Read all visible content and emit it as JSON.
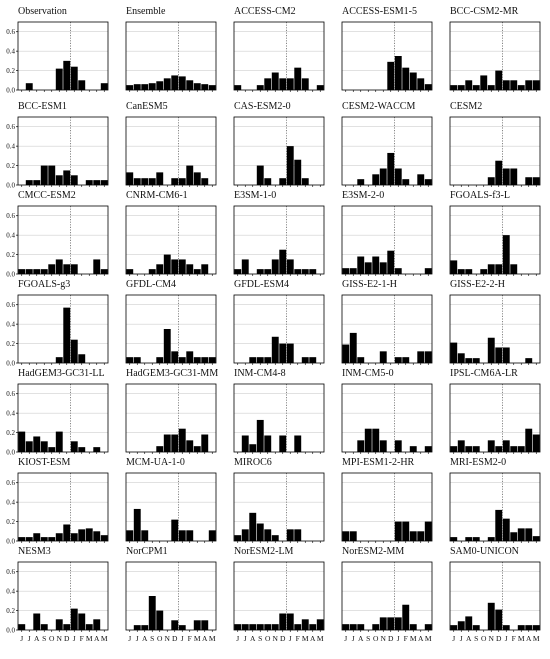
{
  "chart_data": {
    "type": "bar",
    "layout": "small-multiples",
    "grid": true,
    "months": [
      "J",
      "J",
      "A",
      "S",
      "O",
      "N",
      "D",
      "J",
      "F",
      "M",
      "A",
      "M"
    ],
    "ylim": [
      0,
      0.7
    ],
    "yticks": [
      0.0,
      0.2,
      0.4,
      0.6
    ],
    "ytick_labels": [
      "0.0",
      "0.2",
      "0.4",
      "0.6"
    ],
    "divider_after_month_index": 6,
    "panels": [
      {
        "name": "Observation",
        "values": [
          0,
          0.07,
          0,
          0,
          0,
          0.22,
          0.3,
          0.24,
          0.1,
          0,
          0,
          0.07
        ]
      },
      {
        "name": "Ensemble",
        "values": [
          0.05,
          0.06,
          0.06,
          0.07,
          0.09,
          0.12,
          0.15,
          0.14,
          0.1,
          0.07,
          0.06,
          0.05
        ]
      },
      {
        "name": "ACCESS-CM2",
        "values": [
          0.05,
          0,
          0,
          0.05,
          0.12,
          0.18,
          0.12,
          0.12,
          0.23,
          0.12,
          0,
          0.05
        ]
      },
      {
        "name": "ACCESS-ESM1-5",
        "values": [
          0,
          0,
          0,
          0,
          0,
          0,
          0.29,
          0.35,
          0.23,
          0.18,
          0.12,
          0.06
        ]
      },
      {
        "name": "BCC-CSM2-MR",
        "values": [
          0.05,
          0.05,
          0.1,
          0.05,
          0.15,
          0.05,
          0.2,
          0.1,
          0.1,
          0.05,
          0.1,
          0.1
        ]
      },
      {
        "name": "BCC-ESM1",
        "values": [
          0,
          0.05,
          0.05,
          0.2,
          0.2,
          0.1,
          0.15,
          0.1,
          0,
          0.05,
          0.05,
          0.05
        ]
      },
      {
        "name": "CanESM5",
        "values": [
          0.13,
          0.07,
          0.07,
          0.07,
          0.13,
          0,
          0.07,
          0.07,
          0.2,
          0.13,
          0.07,
          0
        ]
      },
      {
        "name": "CAS-ESM2-0",
        "values": [
          0,
          0,
          0,
          0.2,
          0.07,
          0,
          0.07,
          0.4,
          0.26,
          0.07,
          0,
          0
        ]
      },
      {
        "name": "CESM2-WACCM",
        "values": [
          0,
          0,
          0.06,
          0,
          0.11,
          0.17,
          0.33,
          0.17,
          0.06,
          0,
          0.11,
          0.06
        ]
      },
      {
        "name": "CESM2",
        "values": [
          0,
          0,
          0,
          0,
          0,
          0.08,
          0.25,
          0.17,
          0.17,
          0,
          0.08,
          0.08
        ]
      },
      {
        "name": "CMCC-ESM2",
        "values": [
          0.05,
          0.05,
          0.05,
          0.05,
          0.1,
          0.15,
          0.1,
          0.1,
          0,
          0,
          0.15,
          0.05
        ]
      },
      {
        "name": "CNRM-CM6-1",
        "values": [
          0.05,
          0,
          0,
          0.05,
          0.1,
          0.2,
          0.15,
          0.15,
          0.1,
          0.05,
          0.1,
          0
        ]
      },
      {
        "name": "E3SM-1-0",
        "values": [
          0.05,
          0.15,
          0,
          0.05,
          0.05,
          0.15,
          0.25,
          0.15,
          0.05,
          0.05,
          0.05,
          0
        ]
      },
      {
        "name": "E3SM-2-0",
        "values": [
          0.06,
          0.06,
          0.18,
          0.12,
          0.18,
          0.12,
          0.24,
          0.06,
          0,
          0,
          0,
          0.06
        ]
      },
      {
        "name": "FGOALS-f3-L",
        "values": [
          0.14,
          0.05,
          0.05,
          0,
          0.05,
          0.1,
          0.1,
          0.4,
          0.1,
          0,
          0,
          0
        ]
      },
      {
        "name": "FGOALS-g3",
        "values": [
          0,
          0,
          0,
          0,
          0,
          0.06,
          0.57,
          0.24,
          0.09,
          0,
          0,
          0
        ]
      },
      {
        "name": "GFDL-CM4",
        "values": [
          0.06,
          0.06,
          0,
          0,
          0.06,
          0.35,
          0.12,
          0.06,
          0.12,
          0.06,
          0.06,
          0.06
        ]
      },
      {
        "name": "GFDL-ESM4",
        "values": [
          0,
          0,
          0.06,
          0.06,
          0.06,
          0.27,
          0.2,
          0.2,
          0,
          0.06,
          0.06,
          0
        ]
      },
      {
        "name": "GISS-E2-1-H",
        "values": [
          0.19,
          0.31,
          0.06,
          0,
          0,
          0.12,
          0,
          0.06,
          0.06,
          0,
          0.12,
          0.12
        ]
      },
      {
        "name": "GISS-E2-2-H",
        "values": [
          0.21,
          0.1,
          0.05,
          0.05,
          0,
          0.26,
          0.16,
          0.16,
          0,
          0,
          0.05,
          0
        ]
      },
      {
        "name": "HadGEM3-GC31-LL",
        "values": [
          0.21,
          0.11,
          0.16,
          0.11,
          0.05,
          0.21,
          0,
          0.11,
          0.05,
          0,
          0.05,
          0
        ]
      },
      {
        "name": "HadGEM3-GC31-MM",
        "values": [
          0,
          0,
          0,
          0,
          0.06,
          0.18,
          0.18,
          0.24,
          0.12,
          0.06,
          0.18,
          0
        ]
      },
      {
        "name": "INM-CM4-8",
        "values": [
          0,
          0.17,
          0.08,
          0.33,
          0.17,
          0,
          0.17,
          0,
          0.17,
          0,
          0,
          0
        ]
      },
      {
        "name": "INM-CM5-0",
        "values": [
          0,
          0,
          0.12,
          0.24,
          0.24,
          0.12,
          0,
          0.12,
          0,
          0.06,
          0,
          0.06
        ]
      },
      {
        "name": "IPSL-CM6A-LR",
        "values": [
          0.06,
          0.12,
          0.06,
          0.06,
          0,
          0.12,
          0.06,
          0.12,
          0.06,
          0.06,
          0.24,
          0.18
        ]
      },
      {
        "name": "KIOST-ESM",
        "values": [
          0.04,
          0.04,
          0.08,
          0.04,
          0.04,
          0.08,
          0.17,
          0.08,
          0.12,
          0.13,
          0.1,
          0.06
        ]
      },
      {
        "name": "MCM-UA-1-0",
        "values": [
          0.11,
          0.33,
          0.11,
          0,
          0,
          0,
          0.22,
          0.11,
          0.11,
          0,
          0,
          0.11
        ]
      },
      {
        "name": "MIROC6",
        "values": [
          0.06,
          0.12,
          0.29,
          0.18,
          0.12,
          0.06,
          0,
          0.12,
          0.12,
          0,
          0,
          0
        ]
      },
      {
        "name": "MPI-ESM1-2-HR",
        "values": [
          0.1,
          0.1,
          0,
          0,
          0,
          0,
          0,
          0.2,
          0.2,
          0.1,
          0.1,
          0.2
        ]
      },
      {
        "name": "MRI-ESM2-0",
        "values": [
          0.04,
          0,
          0.04,
          0.04,
          0,
          0.04,
          0.32,
          0.23,
          0.09,
          0.13,
          0.13,
          0.05
        ]
      },
      {
        "name": "NESM3",
        "values": [
          0.06,
          0,
          0.17,
          0.06,
          0,
          0.11,
          0.06,
          0.22,
          0.17,
          0.06,
          0.11,
          0
        ]
      },
      {
        "name": "NorCPM1",
        "values": [
          0,
          0.05,
          0.05,
          0.35,
          0.2,
          0,
          0.1,
          0.05,
          0,
          0.1,
          0.1,
          0
        ]
      },
      {
        "name": "NorESM2-LM",
        "values": [
          0.06,
          0.06,
          0.06,
          0.06,
          0.06,
          0.06,
          0.17,
          0.17,
          0.06,
          0.11,
          0.06,
          0.11
        ]
      },
      {
        "name": "NorESM2-MM",
        "values": [
          0.06,
          0.06,
          0.06,
          0,
          0.06,
          0.13,
          0.13,
          0.13,
          0.26,
          0.06,
          0,
          0.06
        ]
      },
      {
        "name": "SAM0-UNICON",
        "values": [
          0.05,
          0.09,
          0.14,
          0.05,
          0,
          0.28,
          0.21,
          0.05,
          0,
          0.05,
          0.05,
          0.05
        ]
      }
    ]
  }
}
